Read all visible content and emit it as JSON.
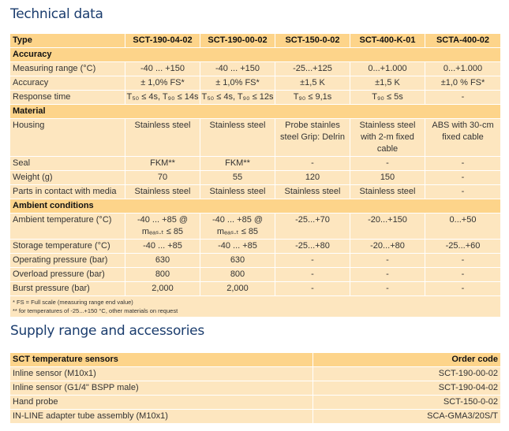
{
  "technical": {
    "title": "Technical data",
    "header": [
      "Type",
      "SCT-190-04-02",
      "SCT-190-00-02",
      "SCT-150-0-02",
      "SCT-400-K-01",
      "SCTA-400-02"
    ],
    "sections": [
      {
        "title": "Accuracy",
        "rows": [
          [
            "Measuring range (°C)",
            "-40 ... +150",
            "-40 ... +150",
            "-25...+125",
            "0...+1.000",
            "0...+1.000"
          ],
          [
            "Accuracy",
            "± 1,0% FS*",
            "± 1,0% FS*",
            "±1,5 K",
            "±1,5 K",
            "±1,0 % FS*"
          ],
          [
            "Response time",
            "T₅₀ ≤ 4s, T₉₀ ≤ 14s",
            "T₅₀ ≤ 4s, T₉₀ ≤ 12s",
            "T₉₀ ≤ 9,1s",
            "T₉₀ ≤ 5s",
            "-"
          ]
        ]
      },
      {
        "title": "Material",
        "rows": [
          [
            "Housing",
            "Stainless steel",
            "Stainless steel",
            "Probe stainles steel Grip: Delrin",
            "Stainless steel with 2-m fixed cable",
            "ABS with 30-cm fixed cable"
          ],
          [
            "Seal",
            "FKM**",
            "FKM**",
            "-",
            "-",
            "-"
          ],
          [
            "Weight (g)",
            "70",
            "55",
            "120",
            "150",
            "-"
          ],
          [
            "Parts in contact with media",
            "Stainless steel",
            "Stainless steel",
            "Stainless steel",
            "Stainless steel",
            "-"
          ]
        ]
      },
      {
        "title": "Ambient conditions",
        "rows": [
          [
            "Ambient temperature (°C)",
            "-40 ... +85 @ mₑₐₛ.ₜ ≤ 85",
            "-40 ... +85 @ mₑₐₛ.ₜ ≤ 85",
            "-25...+70",
            "-20...+150",
            "0...+50"
          ],
          [
            "Storage temperature (°C)",
            "-40 ... +85",
            "-40 ... +85",
            "-25...+80",
            "-20...+80",
            "-25...+60"
          ],
          [
            "Operating pressure (bar)",
            "630",
            "630",
            "-",
            "-",
            "-"
          ],
          [
            "Overload pressure (bar)",
            "800",
            "800",
            "-",
            "-",
            "-"
          ],
          [
            "Burst pressure (bar)",
            "2,000",
            "2,000",
            "-",
            "-",
            "-"
          ]
        ]
      }
    ],
    "footnotes": [
      "* FS = Full scale (measuring range end value)",
      "** for temperatures of -25...+150 °C, other materials on request"
    ]
  },
  "supply": {
    "title": "Supply range and accessories",
    "header": [
      "SCT temperature sensors",
      "Order code"
    ],
    "rows": [
      [
        "Inline sensor (M10x1)",
        "SCT-190-00-02"
      ],
      [
        "Inline sensor (G1/4\" BSPP male)",
        "SCT-190-04-02"
      ],
      [
        "Hand probe",
        "SCT-150-0-02"
      ],
      [
        "IN-LINE adapter tube assembly (M10x1)",
        "SCA-GMA3/20S/T"
      ]
    ]
  }
}
